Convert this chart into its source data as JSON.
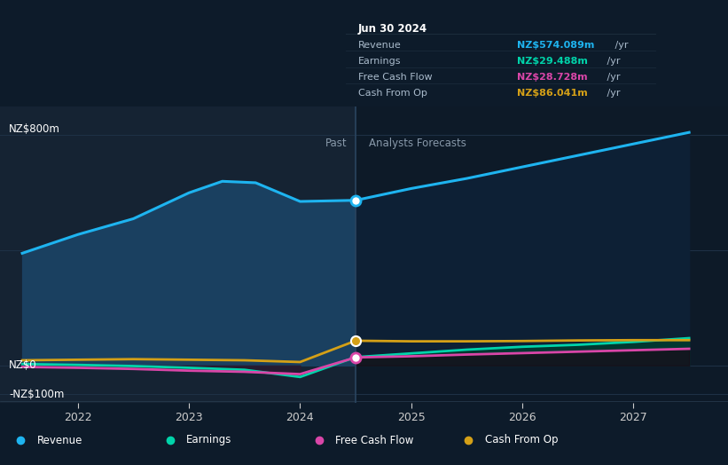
{
  "background_color": "#0d1b2a",
  "past_bg_color": "#152333",
  "forecast_bg_color": "#0d1a28",
  "divider_x": 2024.5,
  "past_label": "Past",
  "forecast_label": "Analysts Forecasts",
  "ylabel_800": "NZ$800m",
  "ylabel_0": "NZ$0",
  "ylabel_neg100": "-NZ$100m",
  "xlim": [
    2021.3,
    2027.85
  ],
  "ylim": [
    -130,
    900
  ],
  "yticks_lines": [
    -100,
    0,
    400,
    800
  ],
  "xticks": [
    2022,
    2023,
    2024,
    2025,
    2026,
    2027
  ],
  "series": {
    "Revenue": {
      "color": "#1eb4f0",
      "fill_color": "#1a4060",
      "x": [
        2021.5,
        2022.0,
        2022.5,
        2023.0,
        2023.3,
        2023.6,
        2024.0,
        2024.5,
        2025.0,
        2025.5,
        2026.0,
        2026.5,
        2027.0,
        2027.5
      ],
      "y": [
        390,
        455,
        510,
        600,
        640,
        635,
        570,
        574,
        615,
        650,
        690,
        730,
        770,
        810
      ]
    },
    "Earnings": {
      "color": "#00d4aa",
      "fill_color": "#003322",
      "x": [
        2021.5,
        2022.0,
        2022.5,
        2023.0,
        2023.5,
        2024.0,
        2024.5,
        2025.0,
        2025.5,
        2026.0,
        2026.5,
        2027.0,
        2027.5
      ],
      "y": [
        5,
        2,
        -2,
        -8,
        -15,
        -40,
        29,
        42,
        55,
        65,
        72,
        82,
        95
      ]
    },
    "Free Cash Flow": {
      "color": "#d946a8",
      "x": [
        2021.5,
        2022.0,
        2022.5,
        2023.0,
        2023.5,
        2024.0,
        2024.5,
        2025.0,
        2025.5,
        2026.0,
        2026.5,
        2027.0,
        2027.5
      ],
      "y": [
        -5,
        -8,
        -12,
        -18,
        -22,
        -30,
        28,
        32,
        38,
        43,
        48,
        53,
        58
      ]
    },
    "Cash From Op": {
      "color": "#d4a017",
      "x": [
        2021.5,
        2022.0,
        2022.5,
        2023.0,
        2023.5,
        2024.0,
        2024.5,
        2025.0,
        2025.5,
        2026.0,
        2026.5,
        2027.0,
        2027.5
      ],
      "y": [
        18,
        20,
        22,
        20,
        18,
        12,
        86,
        84,
        84,
        85,
        87,
        88,
        88
      ]
    }
  },
  "tooltip": {
    "title": "Jun 30 2024",
    "items": [
      {
        "label": "Revenue",
        "value": "NZ$574.089m /yr",
        "color": "#1eb4f0"
      },
      {
        "label": "Earnings",
        "value": "NZ$29.488m /yr",
        "color": "#00d4aa"
      },
      {
        "label": "Free Cash Flow",
        "value": "NZ$28.728m /yr",
        "color": "#d946a8"
      },
      {
        "label": "Cash From Op",
        "value": "NZ$86.041m /yr",
        "color": "#d4a017"
      }
    ]
  },
  "marker_x": 2024.5,
  "revenue_marker_y": 574,
  "cashfromop_marker_y": 86,
  "freecashflow_marker_y": 28,
  "legend": [
    {
      "label": "Revenue",
      "color": "#1eb4f0"
    },
    {
      "label": "Earnings",
      "color": "#00d4aa"
    },
    {
      "label": "Free Cash Flow",
      "color": "#d946a8"
    },
    {
      "label": "Cash From Op",
      "color": "#d4a017"
    }
  ],
  "text_color": "#ffffff",
  "grid_color": "#1e3045",
  "label_color": "#8899aa",
  "tick_color": "#cccccc"
}
